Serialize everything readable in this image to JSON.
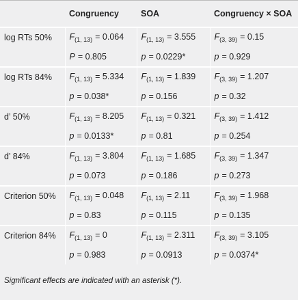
{
  "header": {
    "columns": [
      "Congruency",
      "SOA",
      "Congruency × SOA"
    ]
  },
  "groups": [
    {
      "label": "log RTs 50%",
      "f": [
        {
          "stat": "F",
          "df": "(1, 13)",
          "value": "= 0.064"
        },
        {
          "stat": "F",
          "df": "(1, 13)",
          "value": "= 3.555"
        },
        {
          "stat": "F",
          "df": "(3, 39)",
          "value": "= 0.15"
        }
      ],
      "p": [
        {
          "stat": "P",
          "value": "= 0.805"
        },
        {
          "stat": "p",
          "value": "= 0.0229*"
        },
        {
          "stat": "p",
          "value": "= 0.929"
        }
      ]
    },
    {
      "label": "log RTs 84%",
      "f": [
        {
          "stat": "F",
          "df": "(1, 13)",
          "value": "= 5.334"
        },
        {
          "stat": "F",
          "df": "(1, 13)",
          "value": "= 1.839"
        },
        {
          "stat": "F",
          "df": "(3, 39)",
          "value": "= 1.207"
        }
      ],
      "p": [
        {
          "stat": "p",
          "value": "= 0.038*"
        },
        {
          "stat": "p",
          "value": "= 0.156"
        },
        {
          "stat": "p",
          "value": "= 0.32"
        }
      ]
    },
    {
      "label": "d’ 50%",
      "f": [
        {
          "stat": "F",
          "df": "(1, 13)",
          "value": "= 8.205"
        },
        {
          "stat": "F",
          "df": "(1, 13)",
          "value": "= 0.321"
        },
        {
          "stat": "F",
          "df": "(3, 39)",
          "value": "= 1.412"
        }
      ],
      "p": [
        {
          "stat": "p",
          "value": "= 0.0133*"
        },
        {
          "stat": "p",
          "value": "= 0.81"
        },
        {
          "stat": "p",
          "value": "= 0.254"
        }
      ]
    },
    {
      "label": "d’ 84%",
      "f": [
        {
          "stat": "F",
          "df": "(1, 13)",
          "value": "= 3.804"
        },
        {
          "stat": "F",
          "df": "(1, 13)",
          "value": "= 1.685"
        },
        {
          "stat": "F",
          "df": "(3, 39)",
          "value": "= 1.347"
        }
      ],
      "p": [
        {
          "stat": "p",
          "value": "= 0.073"
        },
        {
          "stat": "p",
          "value": "= 0.186"
        },
        {
          "stat": "p",
          "value": "= 0.273"
        }
      ]
    },
    {
      "label": "Criterion 50%",
      "f": [
        {
          "stat": "F",
          "df": "(1, 13)",
          "value": "= 0.048"
        },
        {
          "stat": "F",
          "df": "(1, 13)",
          "value": "= 2.11"
        },
        {
          "stat": "F",
          "df": "(3, 39)",
          "value": "= 1.968"
        }
      ],
      "p": [
        {
          "stat": "p",
          "value": "= 0.83"
        },
        {
          "stat": "p",
          "value": "= 0.115"
        },
        {
          "stat": "p",
          "value": "= 0.135"
        }
      ]
    },
    {
      "label": "Criterion 84%",
      "f": [
        {
          "stat": "F",
          "df": "(1, 13)",
          "value": "= 0"
        },
        {
          "stat": "F",
          "df": "(1, 13)",
          "value": "= 2.311"
        },
        {
          "stat": "F",
          "df": "(3, 39)",
          "value": "= 3.105"
        }
      ],
      "p": [
        {
          "stat": "p",
          "value": "= 0.983"
        },
        {
          "stat": "p",
          "value": "= 0.0913"
        },
        {
          "stat": "p",
          "value": "= 0.0374*"
        }
      ]
    }
  ],
  "note": "Significant effects are indicated with an asterisk (*)."
}
